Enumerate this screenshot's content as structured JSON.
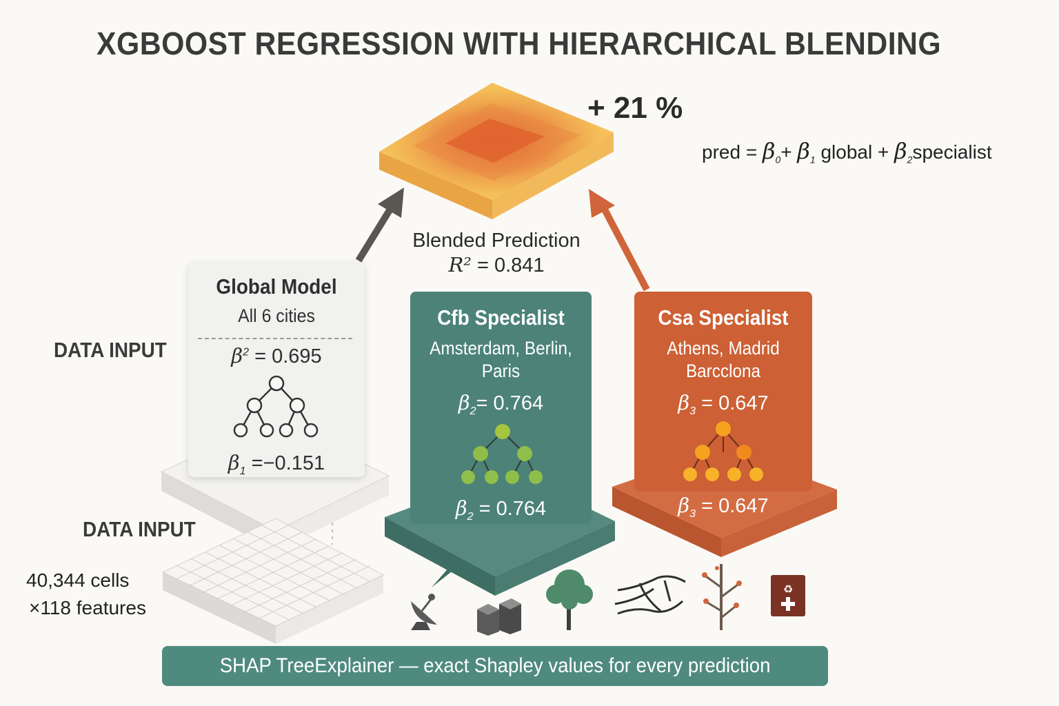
{
  "title": "XGBOOST REGRESSION WITH HIERARCHICAL BLENDING",
  "improvement": "+ 21 %",
  "formula": {
    "pred": "pred",
    "equals": "=",
    "beta": "β",
    "sub0": "0",
    "sub1": "1",
    "sub2": "2",
    "plus": "+",
    "term1": "global",
    "term2": "specialist"
  },
  "blended": {
    "label": "Blended Prediction",
    "r2_symbol": "R²",
    "r2_text": "= 0.841"
  },
  "data_input_label_top": "DATA INPUT",
  "data_input_label_bottom": "DATA INPUT",
  "data_size": {
    "line1": "40,344 cells",
    "line2": "×118 features"
  },
  "global_model": {
    "title": "Global Model",
    "subtitle": "All 6 cities",
    "r2_symbol": "β",
    "r2_sup": "2",
    "r2_text": "= 0.695",
    "coef_symbol": "β",
    "coef_sub": "1",
    "coef_text": "=−0.151"
  },
  "cfb_specialist": {
    "title": "Cfb Specialist",
    "cities_line1": "Amsterdam, Berlin,",
    "cities_line2": "Paris",
    "coef_symbol": "β",
    "coef_sub": "2",
    "coef_text": "= 0.764",
    "coef2_text": "= 0.764"
  },
  "csa_specialist": {
    "title": "Csa Specialist",
    "cities_line1": "Athens, Madrid",
    "cities_line2": "Barcclona",
    "coef_symbol": "β",
    "coef_sub": "3",
    "coef_text": "= 0.647",
    "coef2_text": "= 0.647"
  },
  "shap_banner": "SHAP TreeExplainer — exact Shapley values for every  prediction",
  "colors": {
    "global": "#f1f1ef",
    "cfb": "#4c8278",
    "csa": "#cd6035",
    "banner": "#4f8a7e",
    "arrow_left": "#5a5752",
    "arrow_right": "#d0643a"
  },
  "icons": [
    "satellite-dish-icon",
    "buildings-icon",
    "tree-icon",
    "road-network-icon",
    "bare-tree-icon",
    "recycle-bin-icon"
  ]
}
